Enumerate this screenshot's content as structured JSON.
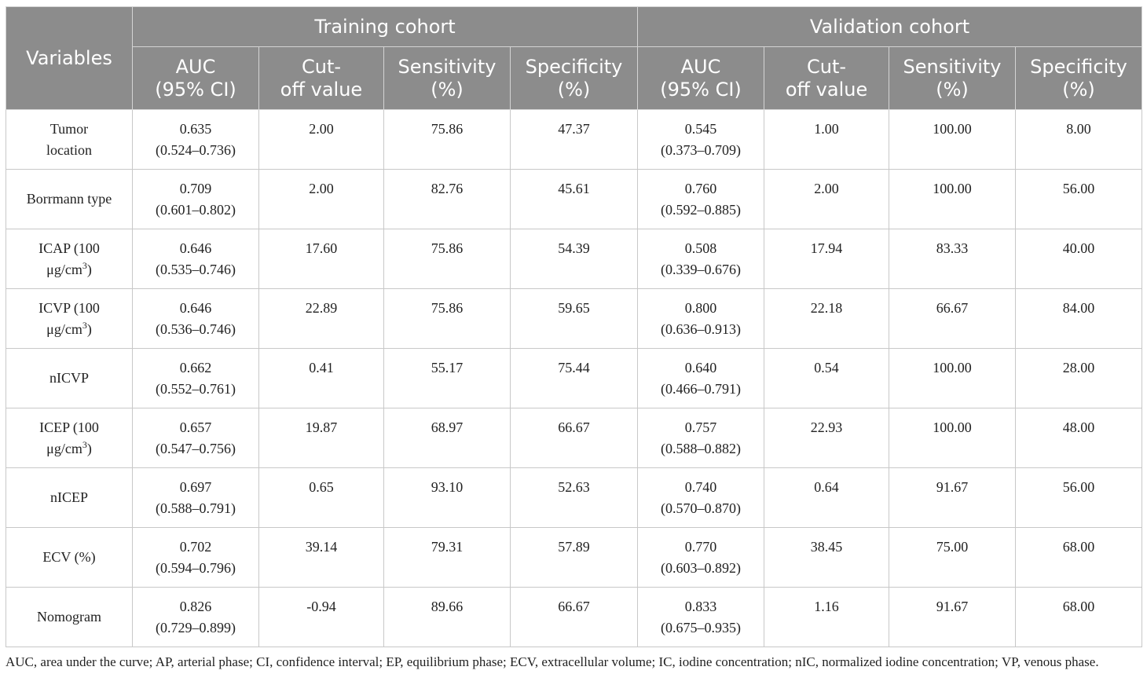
{
  "table": {
    "headers": {
      "variables": "Variables",
      "training": "Training cohort",
      "validation": "Validation cohort",
      "auc": "AUC\n(95% CI)",
      "cutoff": "Cut-\noff value",
      "sensitivity": "Sensitivity\n(%)",
      "specificity": "Specificity\n(%)"
    },
    "rows": [
      {
        "variable": "Tumor\nlocation",
        "variable_sup": "",
        "variable_tail": "",
        "train_auc": "0.635\n(0.524–0.736)",
        "train_cutoff": "2.00",
        "train_sens": "75.86",
        "train_spec": "47.37",
        "val_auc": "0.545\n(0.373–0.709)",
        "val_cutoff": "1.00",
        "val_sens": "100.00",
        "val_spec": "8.00"
      },
      {
        "variable": "Borrmann type",
        "variable_sup": "",
        "variable_tail": "",
        "train_auc": "0.709\n(0.601–0.802)",
        "train_cutoff": "2.00",
        "train_sens": "82.76",
        "train_spec": "45.61",
        "val_auc": "0.760\n(0.592–0.885)",
        "val_cutoff": "2.00",
        "val_sens": "100.00",
        "val_spec": "56.00"
      },
      {
        "variable": "ICAP (100\nμg/cm",
        "variable_sup": "3",
        "variable_tail": ")",
        "train_auc": "0.646\n(0.535–0.746)",
        "train_cutoff": "17.60",
        "train_sens": "75.86",
        "train_spec": "54.39",
        "val_auc": "0.508\n(0.339–0.676)",
        "val_cutoff": "17.94",
        "val_sens": "83.33",
        "val_spec": "40.00"
      },
      {
        "variable": "ICVP (100\nμg/cm",
        "variable_sup": "3",
        "variable_tail": ")",
        "train_auc": "0.646\n(0.536–0.746)",
        "train_cutoff": "22.89",
        "train_sens": "75.86",
        "train_spec": "59.65",
        "val_auc": "0.800\n(0.636–0.913)",
        "val_cutoff": "22.18",
        "val_sens": "66.67",
        "val_spec": "84.00"
      },
      {
        "variable": "nICVP",
        "variable_sup": "",
        "variable_tail": "",
        "train_auc": "0.662\n(0.552–0.761)",
        "train_cutoff": "0.41",
        "train_sens": "55.17",
        "train_spec": "75.44",
        "val_auc": "0.640\n(0.466–0.791)",
        "val_cutoff": "0.54",
        "val_sens": "100.00",
        "val_spec": "28.00"
      },
      {
        "variable": "ICEP (100\nμg/cm",
        "variable_sup": "3",
        "variable_tail": ")",
        "train_auc": "0.657\n(0.547–0.756)",
        "train_cutoff": "19.87",
        "train_sens": "68.97",
        "train_spec": "66.67",
        "val_auc": "0.757\n(0.588–0.882)",
        "val_cutoff": "22.93",
        "val_sens": "100.00",
        "val_spec": "48.00"
      },
      {
        "variable": "nICEP",
        "variable_sup": "",
        "variable_tail": "",
        "train_auc": "0.697\n(0.588–0.791)",
        "train_cutoff": "0.65",
        "train_sens": "93.10",
        "train_spec": "52.63",
        "val_auc": "0.740\n(0.570–0.870)",
        "val_cutoff": "0.64",
        "val_sens": "91.67",
        "val_spec": "56.00"
      },
      {
        "variable": "ECV (%)",
        "variable_sup": "",
        "variable_tail": "",
        "train_auc": "0.702\n(0.594–0.796)",
        "train_cutoff": "39.14",
        "train_sens": "79.31",
        "train_spec": "57.89",
        "val_auc": "0.770\n(0.603–0.892)",
        "val_cutoff": "38.45",
        "val_sens": "75.00",
        "val_spec": "68.00"
      },
      {
        "variable": "Nomogram",
        "variable_sup": "",
        "variable_tail": "",
        "train_auc": "0.826\n(0.729–0.899)",
        "train_cutoff": "-0.94",
        "train_sens": "89.66",
        "train_spec": "66.67",
        "val_auc": "0.833\n(0.675–0.935)",
        "val_cutoff": "1.16",
        "val_sens": "91.67",
        "val_spec": "68.00"
      }
    ]
  },
  "footnote": "AUC, area under the curve; AP, arterial phase; CI, confidence interval; EP, equilibrium phase; ECV, extracellular volume; IC, iodine concentration; nIC, normalized iodine concentration; VP, venous phase."
}
